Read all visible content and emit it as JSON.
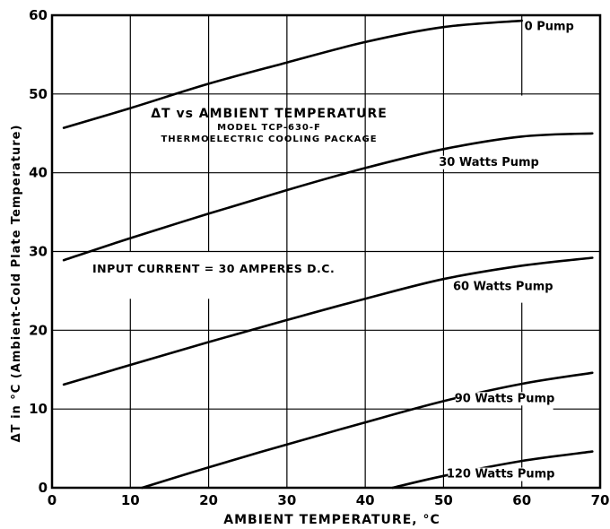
{
  "chart_data": {
    "type": "line",
    "xlabel": "AMBIENT TEMPERATURE, °C",
    "ylabel": "ΔT in °C (Ambient-Cold Plate Temperature)",
    "xlim": [
      0,
      70
    ],
    "ylim": [
      0,
      60
    ],
    "x_ticks": [
      "0",
      "10",
      "20",
      "30",
      "40",
      "50",
      "60",
      "70"
    ],
    "y_ticks": [
      "0",
      "10",
      "20",
      "30",
      "40",
      "50",
      "60"
    ],
    "grid": true,
    "legend": "none (curves labeled inline at right end)",
    "annotations": {
      "title_line1": "ΔT vs AMBIENT TEMPERATURE",
      "title_line2": "MODEL TCP-630-F",
      "title_line3": "THERMOELECTRIC COOLING PACKAGE",
      "current": "INPUT CURRENT = 30 AMPERES D.C."
    },
    "series": [
      {
        "name": "0 Pump",
        "x": [
          1.5,
          10,
          20,
          30,
          40,
          50,
          60
        ],
        "y": [
          45.7,
          48.2,
          51.3,
          54.0,
          56.6,
          58.5,
          59.3
        ]
      },
      {
        "name": "30 Watts Pump",
        "x": [
          1.5,
          10,
          20,
          30,
          40,
          50,
          60,
          69
        ],
        "y": [
          28.9,
          31.7,
          34.8,
          37.8,
          40.6,
          43.0,
          44.6,
          45.0
        ]
      },
      {
        "name": "60 Watts Pump",
        "x": [
          1.5,
          10,
          20,
          30,
          40,
          50,
          60,
          69
        ],
        "y": [
          13.1,
          15.6,
          18.5,
          21.3,
          24.0,
          26.5,
          28.2,
          29.2
        ]
      },
      {
        "name": "90 Watts Pump",
        "x": [
          11.5,
          20,
          30,
          40,
          50,
          60,
          69
        ],
        "y": [
          0,
          2.6,
          5.5,
          8.3,
          11.0,
          13.2,
          14.6
        ]
      },
      {
        "name": "120 Watts Pump",
        "x": [
          43.5,
          50,
          60,
          69
        ],
        "y": [
          0,
          1.5,
          3.4,
          4.6
        ]
      }
    ]
  }
}
